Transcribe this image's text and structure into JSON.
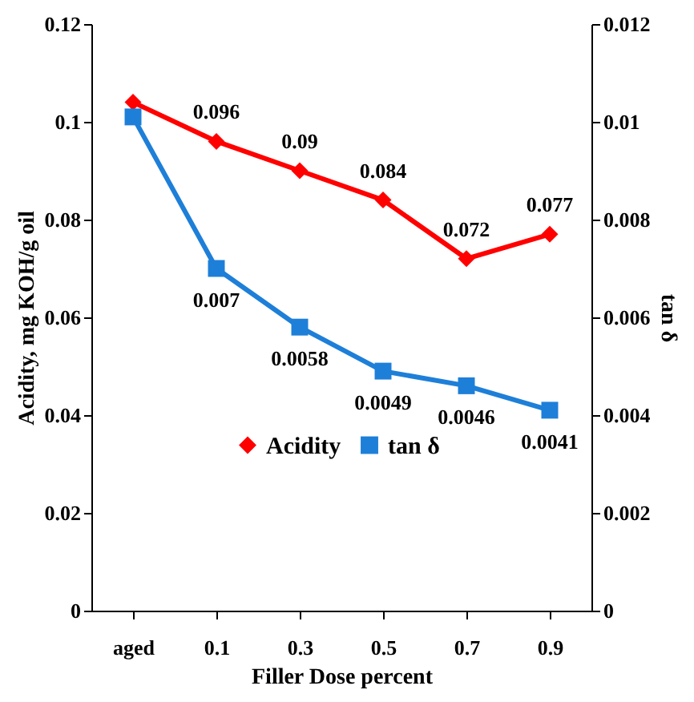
{
  "chart_data": {
    "type": "line",
    "xlabel": "Filler Dose percent",
    "ylabel": "Acidity, mg KOH/g oil",
    "y2label": "tan δ",
    "categories": [
      "aged",
      "0.1",
      "0.3",
      "0.5",
      "0.7",
      "0.9"
    ],
    "series": [
      {
        "name": "Acidity",
        "color": "#ff0000",
        "marker": "diamond",
        "values": [
          0.104,
          0.096,
          0.09,
          0.084,
          0.072,
          0.077
        ],
        "value_labels": [
          null,
          "0.096",
          "0.09",
          "0.084",
          "0.072",
          "0.077"
        ]
      },
      {
        "name": "tan δ",
        "color": "#1e7fd8",
        "marker": "square",
        "axis": "y2",
        "values": [
          0.0101,
          0.007,
          0.0058,
          0.0049,
          0.0046,
          0.0041
        ],
        "value_labels": [
          null,
          "0.007",
          "0.0058",
          "0.0049",
          "0.0046",
          "0.0041"
        ]
      }
    ],
    "ylim": [
      0,
      0.12
    ],
    "yticks": [
      0,
      0.02,
      0.04,
      0.06,
      0.08,
      0.1,
      0.12
    ],
    "y2lim": [
      0,
      0.012
    ],
    "y2ticks": [
      0,
      0.002,
      0.004,
      0.006,
      0.008,
      0.01,
      0.012
    ],
    "legend": "bottom",
    "grid": false
  }
}
